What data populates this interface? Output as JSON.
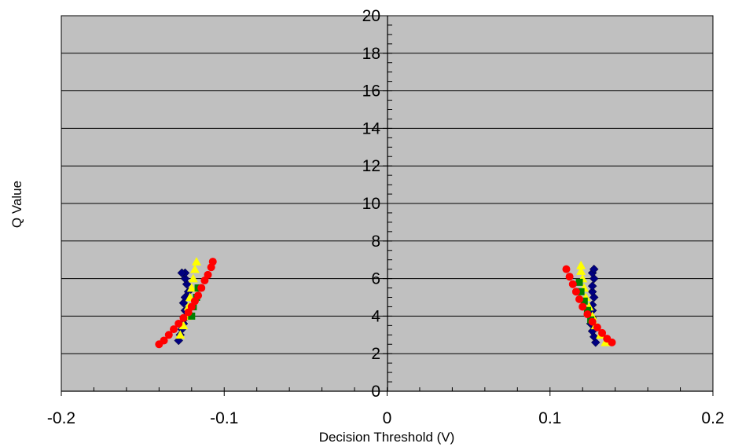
{
  "chart_data": {
    "type": "scatter",
    "title": "",
    "xlabel": "Decision Threshold (V)",
    "ylabel": "Q Value",
    "xlim": [
      -0.2,
      0.2
    ],
    "ylim": [
      0,
      20
    ],
    "x_ticks": [
      "-0.2",
      "-0.1",
      "0",
      "0.1",
      "0.2"
    ],
    "y_ticks": [
      "0",
      "2",
      "4",
      "6",
      "8",
      "10",
      "12",
      "14",
      "16",
      "18",
      "20"
    ],
    "grid": "horizontal",
    "legend": "none",
    "plot_background": "#c0c0c0",
    "series": [
      {
        "marker": "diamond",
        "color": "#000080",
        "points": [
          [
            -0.128,
            2.7
          ],
          [
            -0.127,
            3.0
          ],
          [
            -0.126,
            3.3
          ],
          [
            -0.125,
            3.6
          ],
          [
            -0.124,
            3.9
          ],
          [
            -0.124,
            4.3
          ],
          [
            -0.125,
            4.7
          ],
          [
            -0.124,
            5.0
          ],
          [
            -0.122,
            5.3
          ],
          [
            -0.123,
            5.7
          ],
          [
            -0.124,
            6.0
          ],
          [
            -0.124,
            6.3
          ],
          [
            -0.126,
            6.3
          ],
          [
            0.128,
            2.6
          ],
          [
            0.127,
            2.9
          ],
          [
            0.126,
            3.2
          ],
          [
            0.125,
            3.6
          ],
          [
            0.126,
            3.9
          ],
          [
            0.126,
            4.3
          ],
          [
            0.126,
            4.6
          ],
          [
            0.127,
            5.0
          ],
          [
            0.126,
            5.3
          ],
          [
            0.126,
            5.6
          ],
          [
            0.127,
            6.0
          ],
          [
            0.126,
            6.3
          ],
          [
            0.127,
            6.5
          ]
        ]
      },
      {
        "marker": "triangle",
        "color": "#ffff00",
        "points": [
          [
            -0.127,
            3.0
          ],
          [
            -0.125,
            3.5
          ],
          [
            -0.123,
            4.0
          ],
          [
            -0.122,
            4.5
          ],
          [
            -0.121,
            5.0
          ],
          [
            -0.12,
            5.5
          ],
          [
            -0.119,
            6.0
          ],
          [
            -0.118,
            6.5
          ],
          [
            -0.117,
            6.9
          ],
          [
            0.134,
            2.6
          ],
          [
            0.131,
            3.0
          ],
          [
            0.128,
            3.5
          ],
          [
            0.126,
            4.0
          ],
          [
            0.124,
            4.5
          ],
          [
            0.122,
            5.0
          ],
          [
            0.121,
            5.5
          ],
          [
            0.12,
            6.0
          ],
          [
            0.119,
            6.4
          ],
          [
            0.119,
            6.7
          ]
        ]
      },
      {
        "marker": "square",
        "color": "#008000",
        "points": [
          [
            -0.12,
            4.0
          ],
          [
            -0.119,
            4.5
          ],
          [
            -0.117,
            5.0
          ],
          [
            -0.116,
            5.5
          ],
          [
            0.118,
            5.8
          ],
          [
            0.119,
            5.3
          ],
          [
            0.121,
            4.8
          ],
          [
            0.123,
            4.3
          ],
          [
            0.125,
            3.8
          ]
        ]
      },
      {
        "marker": "circle",
        "color": "#ff0000",
        "points": [
          [
            -0.14,
            2.5
          ],
          [
            -0.137,
            2.7
          ],
          [
            -0.134,
            3.0
          ],
          [
            -0.131,
            3.3
          ],
          [
            -0.128,
            3.6
          ],
          [
            -0.125,
            3.9
          ],
          [
            -0.122,
            4.2
          ],
          [
            -0.12,
            4.5
          ],
          [
            -0.118,
            4.8
          ],
          [
            -0.116,
            5.1
          ],
          [
            -0.114,
            5.5
          ],
          [
            -0.112,
            5.9
          ],
          [
            -0.11,
            6.2
          ],
          [
            -0.108,
            6.6
          ],
          [
            -0.107,
            6.9
          ],
          [
            0.11,
            6.5
          ],
          [
            0.112,
            6.1
          ],
          [
            0.114,
            5.7
          ],
          [
            0.116,
            5.3
          ],
          [
            0.118,
            4.9
          ],
          [
            0.12,
            4.5
          ],
          [
            0.123,
            4.1
          ],
          [
            0.126,
            3.7
          ],
          [
            0.129,
            3.4
          ],
          [
            0.132,
            3.1
          ],
          [
            0.135,
            2.8
          ],
          [
            0.138,
            2.6
          ]
        ]
      }
    ]
  }
}
